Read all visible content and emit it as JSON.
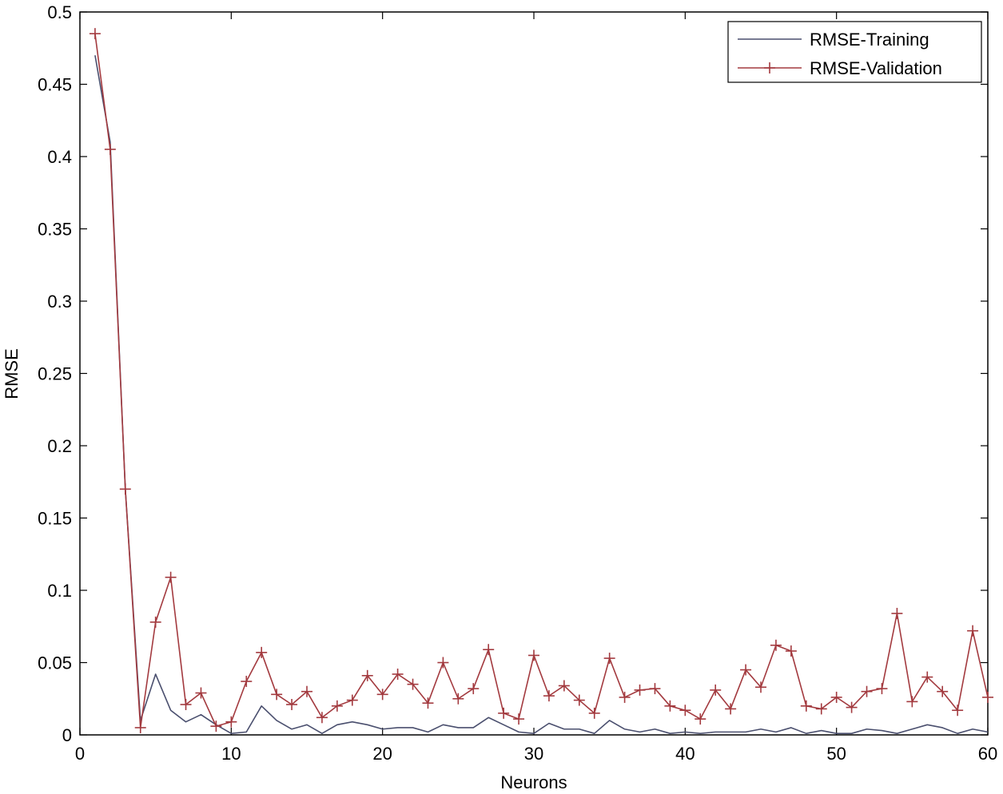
{
  "chart_data": {
    "type": "line",
    "xlabel": "Neurons",
    "ylabel": "RMSE",
    "xlim": [
      0,
      60
    ],
    "ylim": [
      0,
      0.5
    ],
    "xticks": [
      0,
      10,
      20,
      30,
      40,
      50,
      60
    ],
    "yticks": [
      0,
      0.05,
      0.1,
      0.15,
      0.2,
      0.25,
      0.3,
      0.35,
      0.4,
      0.45,
      0.5
    ],
    "ytick_labels": [
      "0",
      "0.05",
      "0.1",
      "0.15",
      "0.2",
      "0.25",
      "0.3",
      "0.35",
      "0.4",
      "0.45",
      "0.5"
    ],
    "grid": false,
    "legend_position": "top-right",
    "x": [
      1,
      2,
      3,
      4,
      5,
      6,
      7,
      8,
      9,
      10,
      11,
      12,
      13,
      14,
      15,
      16,
      17,
      18,
      19,
      20,
      21,
      22,
      23,
      24,
      25,
      26,
      27,
      28,
      29,
      30,
      31,
      32,
      33,
      34,
      35,
      36,
      37,
      38,
      39,
      40,
      41,
      42,
      43,
      44,
      45,
      46,
      47,
      48,
      49,
      50,
      51,
      52,
      53,
      54,
      55,
      56,
      57,
      58,
      59,
      60
    ],
    "series": [
      {
        "name": "RMSE-Training",
        "color": "#4a4f6e",
        "marker": "none",
        "values": [
          0.47,
          0.41,
          0.17,
          0.01,
          0.042,
          0.017,
          0.009,
          0.014,
          0.007,
          0.001,
          0.002,
          0.02,
          0.01,
          0.004,
          0.007,
          0.001,
          0.007,
          0.009,
          0.007,
          0.004,
          0.005,
          0.005,
          0.002,
          0.007,
          0.005,
          0.005,
          0.012,
          0.007,
          0.002,
          0.001,
          0.008,
          0.004,
          0.004,
          0.001,
          0.01,
          0.004,
          0.002,
          0.004,
          0.001,
          0.002,
          0.001,
          0.002,
          0.002,
          0.002,
          0.004,
          0.002,
          0.005,
          0.001,
          0.003,
          0.001,
          0.001,
          0.004,
          0.003,
          0.001,
          0.004,
          0.007,
          0.005,
          0.001,
          0.004,
          0.002
        ]
      },
      {
        "name": "RMSE-Validation",
        "color": "#a33a3f",
        "marker": "+",
        "values": [
          0.485,
          0.405,
          0.17,
          0.005,
          0.078,
          0.109,
          0.021,
          0.029,
          0.006,
          0.009,
          0.037,
          0.057,
          0.028,
          0.021,
          0.03,
          0.012,
          0.02,
          0.024,
          0.041,
          0.028,
          0.042,
          0.035,
          0.022,
          0.05,
          0.025,
          0.032,
          0.059,
          0.015,
          0.011,
          0.055,
          0.027,
          0.034,
          0.024,
          0.015,
          0.053,
          0.026,
          0.031,
          0.032,
          0.02,
          0.017,
          0.011,
          0.031,
          0.018,
          0.045,
          0.033,
          0.062,
          0.058,
          0.02,
          0.018,
          0.026,
          0.019,
          0.03,
          0.032,
          0.084,
          0.023,
          0.04,
          0.03,
          0.017,
          0.072,
          0.026
        ]
      }
    ]
  }
}
